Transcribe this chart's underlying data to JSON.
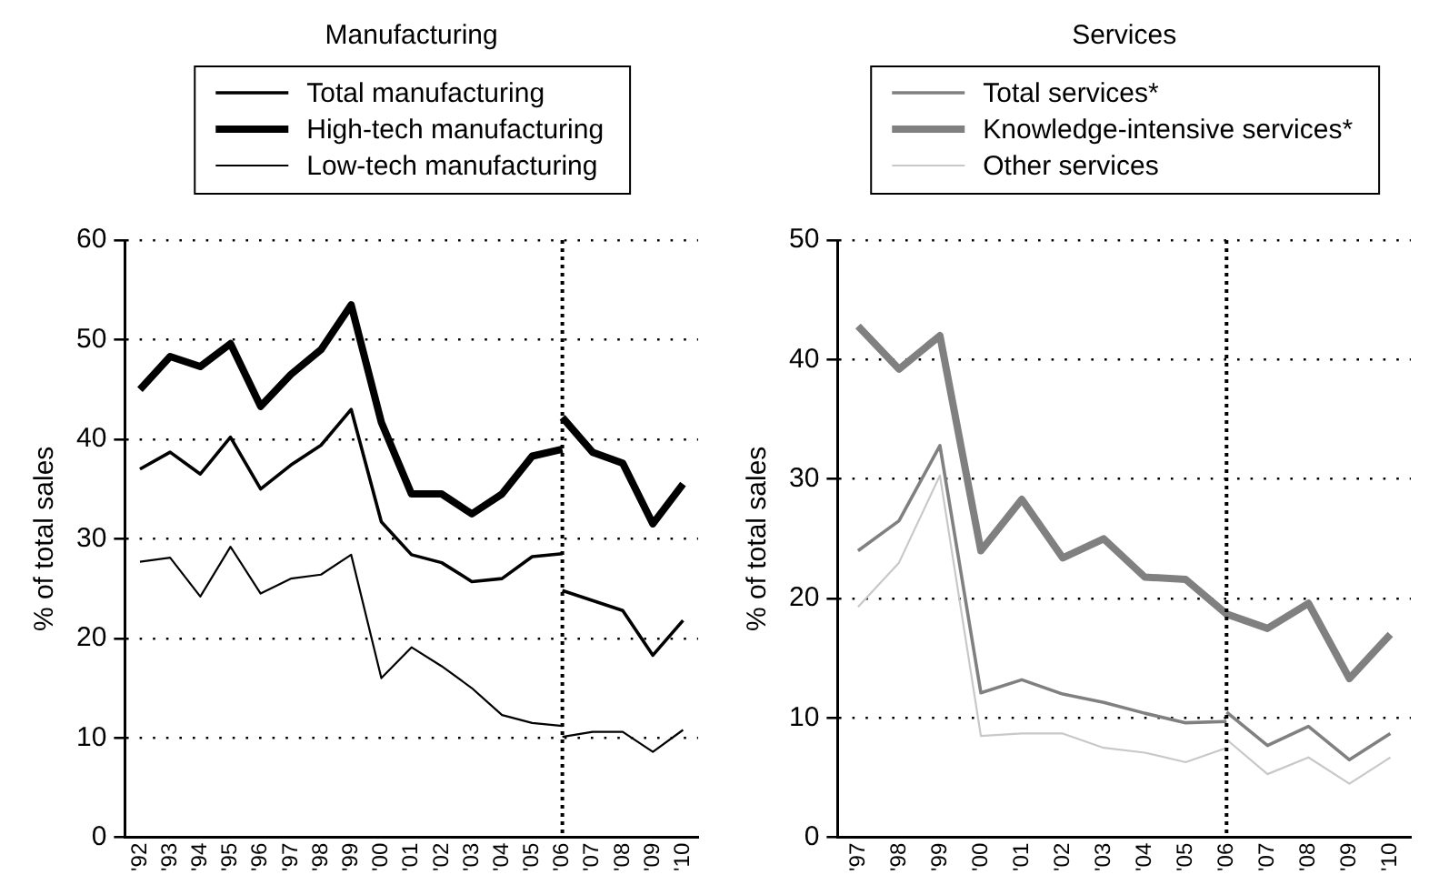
{
  "chart_data": [
    {
      "type": "line",
      "title": "Manufacturing",
      "ylabel": "% of total sales",
      "xlim": [
        1991.5,
        2010.5
      ],
      "xticks": [
        {
          "value": 1992,
          "label": "'92"
        },
        {
          "value": 1993,
          "label": "'93"
        },
        {
          "value": 1994,
          "label": "'94"
        },
        {
          "value": 1995,
          "label": "'95"
        },
        {
          "value": 1996,
          "label": "'96"
        },
        {
          "value": 1997,
          "label": "'97"
        },
        {
          "value": 1998,
          "label": "'98"
        },
        {
          "value": 1999,
          "label": "'99"
        },
        {
          "value": 2000,
          "label": "'00"
        },
        {
          "value": 2001,
          "label": "'01"
        },
        {
          "value": 2002,
          "label": "'02"
        },
        {
          "value": 2003,
          "label": "'03"
        },
        {
          "value": 2004,
          "label": "'04"
        },
        {
          "value": 2005,
          "label": "'05"
        },
        {
          "value": 2006,
          "label": "'06"
        },
        {
          "value": 2007,
          "label": "'07"
        },
        {
          "value": 2008,
          "label": "'08"
        },
        {
          "value": 2009,
          "label": "'09"
        },
        {
          "value": 2010,
          "label": "'10"
        }
      ],
      "ylim": [
        0,
        60
      ],
      "yticks": [
        0,
        10,
        20,
        30,
        40,
        50,
        60
      ],
      "grid": "y",
      "legend": "top",
      "line_style": "solid",
      "ref_lines": [
        {
          "axis": "x",
          "value": 2006,
          "line_style": "dotted",
          "color": "#000000"
        }
      ],
      "series": [
        {
          "name": "Total manufacturing",
          "color": "#000000",
          "x": [
            1992,
            1993,
            1994,
            1995,
            1996,
            1997,
            1998,
            1999,
            2000,
            2001,
            2002,
            2003,
            2004,
            2005,
            2006,
            2006,
            2007,
            2008,
            2009,
            2010
          ],
          "values": [
            37,
            38.7,
            36.5,
            40.2,
            35,
            37.4,
            39.4,
            43,
            31.7,
            28.4,
            27.6,
            25.7,
            26,
            28.2,
            28.5,
            24.8,
            23.8,
            22.8,
            18.3,
            21.8
          ]
        },
        {
          "name": "High-tech manufacturing",
          "color": "#000000",
          "x": [
            1992,
            1993,
            1994,
            1995,
            1996,
            1997,
            1998,
            1999,
            2000,
            2001,
            2002,
            2003,
            2004,
            2005,
            2006,
            2006,
            2007,
            2008,
            2009,
            2010
          ],
          "values": [
            45,
            48.3,
            47.3,
            49.6,
            43.3,
            46.5,
            49,
            53.5,
            41.7,
            34.5,
            34.5,
            32.5,
            34.5,
            38.3,
            39,
            42.2,
            38.7,
            37.6,
            31.5,
            35.5
          ]
        },
        {
          "name": "Low-tech manufacturing",
          "color": "#000000",
          "x": [
            1992,
            1993,
            1994,
            1995,
            1996,
            1997,
            1998,
            1999,
            2000,
            2001,
            2002,
            2003,
            2004,
            2005,
            2006,
            2006,
            2007,
            2008,
            2009,
            2010
          ],
          "values": [
            27.7,
            28.1,
            24.2,
            29.2,
            24.5,
            26,
            26.4,
            28.4,
            16,
            19.1,
            17.2,
            15,
            12.3,
            11.5,
            11.2,
            10.1,
            10.6,
            10.6,
            8.6,
            10.8
          ]
        }
      ]
    },
    {
      "type": "line",
      "title": "Services",
      "ylabel": "% of total sales",
      "xlim": [
        1996.5,
        2010.5
      ],
      "xticks": [
        {
          "value": 1997,
          "label": "'97"
        },
        {
          "value": 1998,
          "label": "'98"
        },
        {
          "value": 1999,
          "label": "'99"
        },
        {
          "value": 2000,
          "label": "'00"
        },
        {
          "value": 2001,
          "label": "'01"
        },
        {
          "value": 2002,
          "label": "'02"
        },
        {
          "value": 2003,
          "label": "'03"
        },
        {
          "value": 2004,
          "label": "'04"
        },
        {
          "value": 2005,
          "label": "'05"
        },
        {
          "value": 2006,
          "label": "'06"
        },
        {
          "value": 2007,
          "label": "'07"
        },
        {
          "value": 2008,
          "label": "'08"
        },
        {
          "value": 2009,
          "label": "'09"
        },
        {
          "value": 2010,
          "label": "'10"
        }
      ],
      "ylim": [
        0,
        50
      ],
      "yticks": [
        0,
        10,
        20,
        30,
        40,
        50
      ],
      "grid": "y",
      "legend": "top",
      "line_style": "solid",
      "ref_lines": [
        {
          "axis": "x",
          "value": 2006,
          "line_style": "dotted",
          "color": "#000000"
        }
      ],
      "series": [
        {
          "name": "Total services*",
          "color": "#808080",
          "x": [
            1997,
            1998,
            1999,
            2000,
            2001,
            2002,
            2003,
            2004,
            2005,
            2006,
            2006,
            2007,
            2008,
            2009,
            2010
          ],
          "values": [
            24,
            26.5,
            32.8,
            12.1,
            13.2,
            12,
            11.3,
            10.4,
            9.6,
            9.7,
            10.5,
            7.7,
            9.3,
            6.5,
            8.7
          ]
        },
        {
          "name": "Knowledge-intensive services*",
          "color": "#808080",
          "x": [
            1997,
            1998,
            1999,
            2000,
            2001,
            2002,
            2003,
            2004,
            2005,
            2006,
            2007,
            2008,
            2009,
            2010
          ],
          "values": [
            42.8,
            39.2,
            42,
            24,
            28.3,
            23.4,
            25,
            21.8,
            21.6,
            18.7,
            17.5,
            19.6,
            13.3,
            17
          ]
        },
        {
          "name": "Other services",
          "color": "#c8c8c8",
          "x": [
            1997,
            1998,
            1999,
            2000,
            2001,
            2002,
            2003,
            2004,
            2005,
            2006,
            2006,
            2007,
            2008,
            2009,
            2010
          ],
          "values": [
            19.3,
            23,
            30.3,
            8.5,
            8.7,
            8.7,
            7.5,
            7.1,
            6.3,
            7.5,
            8.2,
            5.3,
            6.7,
            4.5,
            6.7
          ]
        }
      ]
    }
  ]
}
